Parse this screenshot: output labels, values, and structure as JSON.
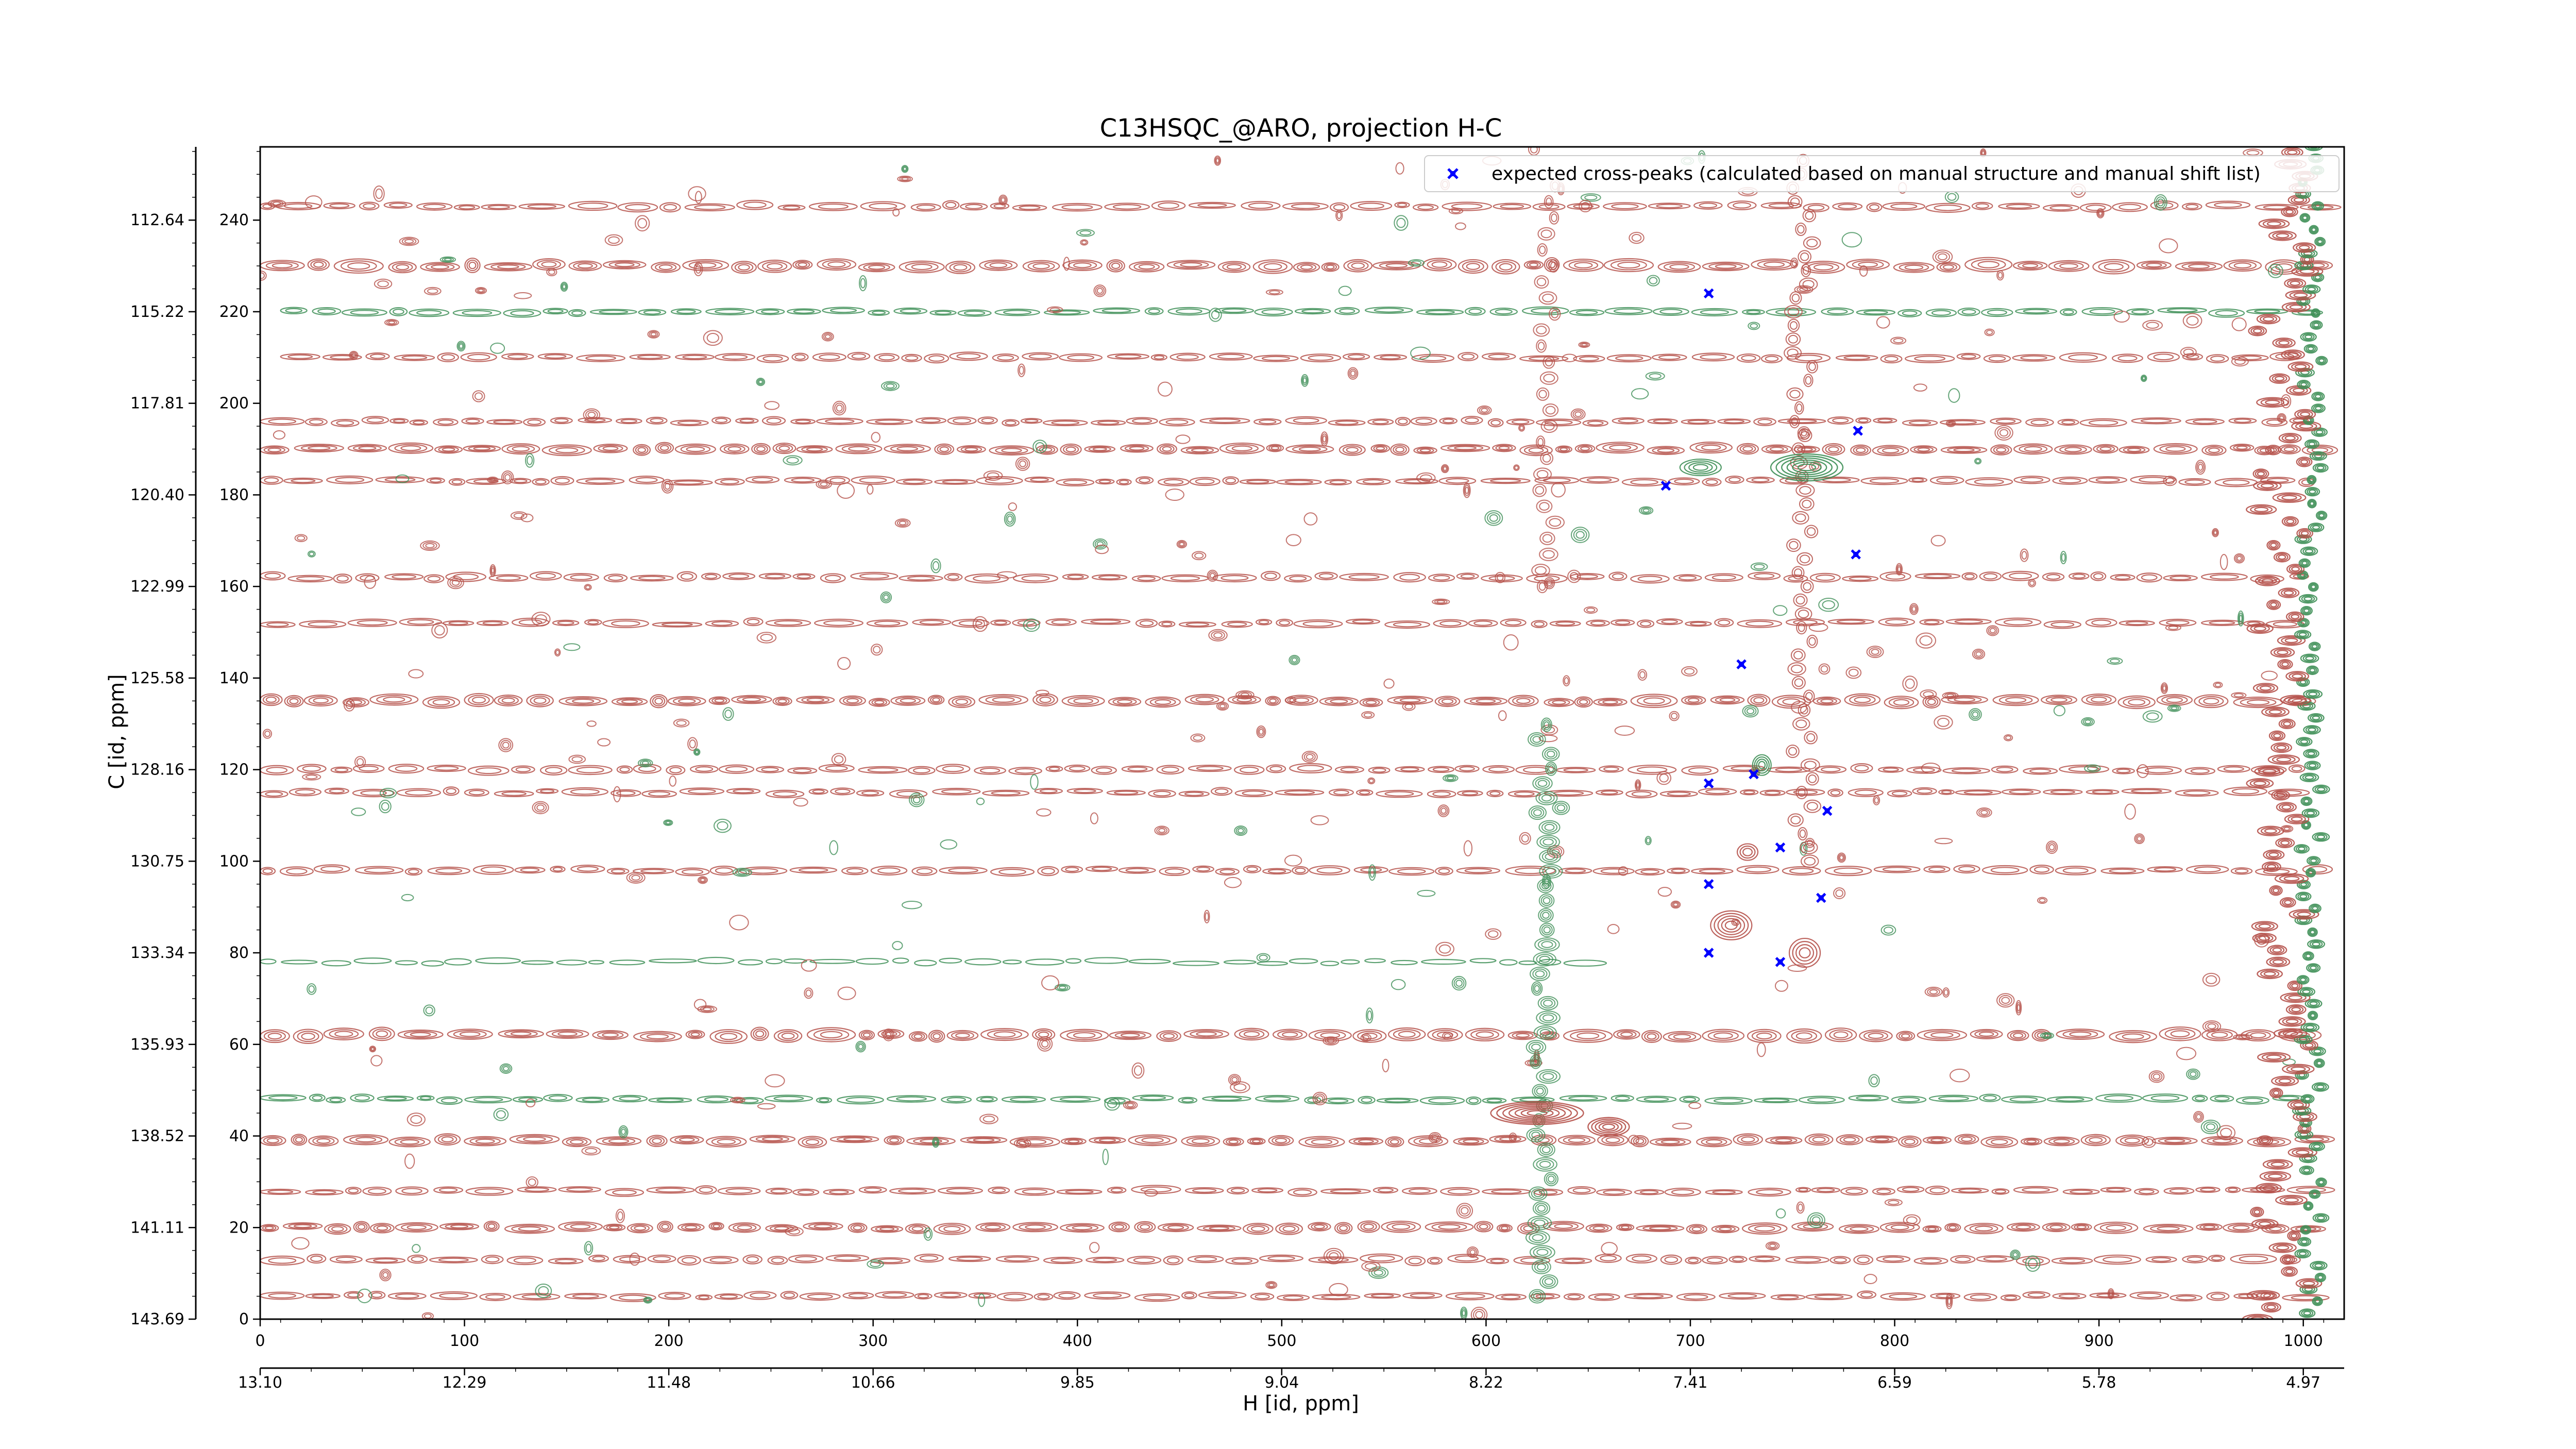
{
  "chart_data": {
    "type": "scatter",
    "title": "C13HSQC_@ARO, projection H-C",
    "xlabel": "H [id, ppm]",
    "ylabel": "C [id, ppm]",
    "xlim": [
      0,
      1020
    ],
    "ylim": [
      0,
      256
    ],
    "x_ticks": [
      0,
      100,
      200,
      300,
      400,
      500,
      600,
      700,
      800,
      900,
      1000
    ],
    "y_ticks": [
      0,
      20,
      40,
      60,
      80,
      100,
      120,
      140,
      160,
      180,
      200,
      220,
      240
    ],
    "x_ppm_tick_labels": [
      "13.10",
      "12.29",
      "11.48",
      "10.66",
      "9.85",
      "9.04",
      "8.22",
      "7.41",
      "6.59",
      "5.78",
      "4.97"
    ],
    "y_ppm_tick_labels": [
      "143.69",
      "141.11",
      "138.52",
      "135.93",
      "133.34",
      "130.75",
      "128.16",
      "125.58",
      "122.99",
      "120.40",
      "117.81",
      "115.22",
      "112.64"
    ],
    "grid": false,
    "legend_position": "top-right",
    "background": "contour map (positive contours in red, negative contours in green)",
    "colors": {
      "positive_contour": "#b5514a",
      "negative_contour": "#3e8f57",
      "marker": "#0000ff"
    },
    "series": [
      {
        "name": "expected cross-peaks (calculated based on manual structure and manual shift list)",
        "marker": "x",
        "color": "#0000ff",
        "points": [
          {
            "x": 709,
            "y": 224
          },
          {
            "x": 782,
            "y": 194
          },
          {
            "x": 688,
            "y": 182
          },
          {
            "x": 781,
            "y": 167
          },
          {
            "x": 725,
            "y": 143
          },
          {
            "x": 709,
            "y": 117
          },
          {
            "x": 731,
            "y": 119
          },
          {
            "x": 767,
            "y": 111
          },
          {
            "x": 744,
            "y": 103
          },
          {
            "x": 709,
            "y": 95
          },
          {
            "x": 764,
            "y": 92
          },
          {
            "x": 709,
            "y": 80
          },
          {
            "x": 744,
            "y": 78
          }
        ]
      }
    ]
  }
}
